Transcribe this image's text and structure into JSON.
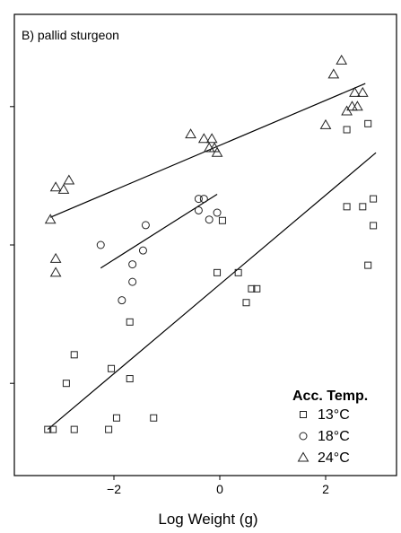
{
  "chart_data": {
    "type": "scatter",
    "title": "B) pallid sturgeon",
    "xlabel": "Log Weight (g)",
    "ylabel": "",
    "xlim": [
      -3.6,
      3.2
    ],
    "ylim": [
      0,
      1
    ],
    "xticks": [
      -2,
      0,
      2
    ],
    "xtick_labels": [
      "−2",
      "0",
      "2"
    ],
    "yticks": [
      0.2,
      0.5,
      0.8
    ],
    "ytick_labels": [
      "",
      "",
      ""
    ],
    "legend": {
      "title": "Acc. Temp.",
      "position": "bottom-right"
    },
    "series": [
      {
        "name": "13°C",
        "marker": "square",
        "points": [
          [
            -3.25,
            0.1
          ],
          [
            -3.15,
            0.1
          ],
          [
            -2.75,
            0.1
          ],
          [
            -2.1,
            0.1
          ],
          [
            -1.95,
            0.125
          ],
          [
            -1.25,
            0.125
          ],
          [
            -2.9,
            0.2
          ],
          [
            -2.05,
            0.232
          ],
          [
            -1.7,
            0.21
          ],
          [
            -2.75,
            0.262
          ],
          [
            -1.7,
            0.333
          ],
          [
            -0.05,
            0.44
          ],
          [
            0.35,
            0.44
          ],
          [
            0.5,
            0.375
          ],
          [
            0.6,
            0.405
          ],
          [
            0.7,
            0.405
          ],
          [
            0.05,
            0.553
          ],
          [
            2.4,
            0.583
          ],
          [
            2.7,
            0.583
          ],
          [
            2.8,
            0.456
          ],
          [
            2.9,
            0.6
          ],
          [
            2.9,
            0.542
          ],
          [
            2.8,
            0.763
          ],
          [
            2.4,
            0.75
          ]
        ],
        "fit": [
          [
            -3.25,
            0.1
          ],
          [
            2.95,
            0.7
          ]
        ]
      },
      {
        "name": "18°C",
        "marker": "circle",
        "points": [
          [
            -2.25,
            0.5
          ],
          [
            -1.85,
            0.38
          ],
          [
            -1.65,
            0.42
          ],
          [
            -1.65,
            0.458
          ],
          [
            -1.45,
            0.488
          ],
          [
            -1.4,
            0.543
          ],
          [
            -0.4,
            0.6
          ],
          [
            -0.3,
            0.6
          ],
          [
            -0.4,
            0.575
          ],
          [
            -0.2,
            0.555
          ],
          [
            -0.05,
            0.57
          ]
        ],
        "fit": [
          [
            -2.25,
            0.45
          ],
          [
            -0.05,
            0.61
          ]
        ]
      },
      {
        "name": "24°C",
        "marker": "triangle",
        "points": [
          [
            -3.2,
            0.555
          ],
          [
            -3.1,
            0.625
          ],
          [
            -2.95,
            0.62
          ],
          [
            -2.85,
            0.64
          ],
          [
            -3.1,
            0.47
          ],
          [
            -3.1,
            0.44
          ],
          [
            -0.55,
            0.74
          ],
          [
            -0.3,
            0.73
          ],
          [
            -0.15,
            0.73
          ],
          [
            -0.2,
            0.71
          ],
          [
            -0.1,
            0.71
          ],
          [
            -0.05,
            0.7
          ],
          [
            2.0,
            0.76
          ],
          [
            2.15,
            0.87
          ],
          [
            2.3,
            0.9
          ],
          [
            2.4,
            0.79
          ],
          [
            2.5,
            0.8
          ],
          [
            2.6,
            0.8
          ],
          [
            2.7,
            0.83
          ],
          [
            2.55,
            0.83
          ]
        ],
        "fit": [
          [
            -3.2,
            0.56
          ],
          [
            2.75,
            0.85
          ]
        ]
      }
    ]
  }
}
